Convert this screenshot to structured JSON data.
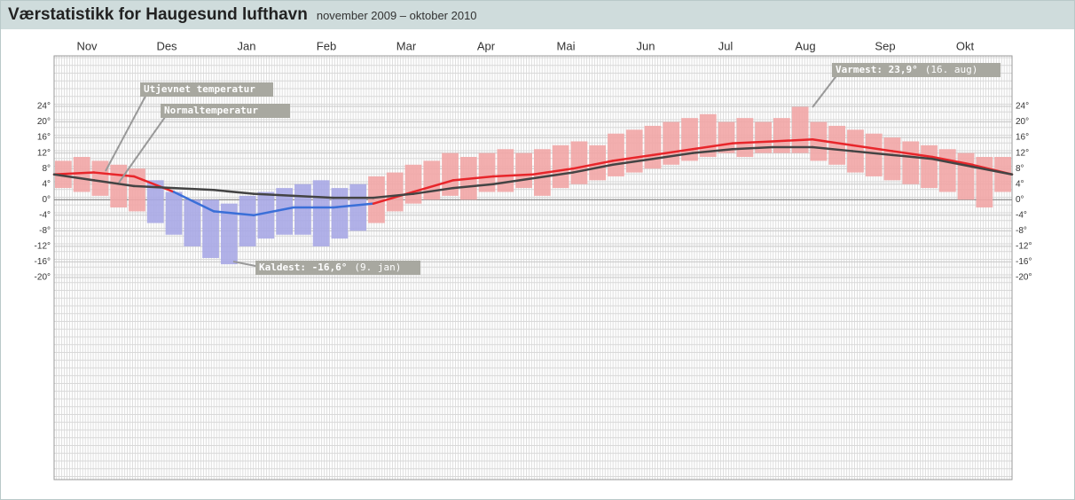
{
  "chart_data": {
    "type": "range_bar",
    "title": "Værstatistikk for Haugesund lufthavn",
    "subtitle": "november 2009 – oktober 2010",
    "categories": [
      "Nov",
      "Des",
      "Jan",
      "Feb",
      "Mar",
      "Apr",
      "Mai",
      "Jun",
      "Jul",
      "Aug",
      "Sep",
      "Okt"
    ],
    "ylim": [
      -72,
      37
    ],
    "yticks": [
      {
        "value": 24,
        "label": "24°"
      },
      {
        "value": 20,
        "label": "20°"
      },
      {
        "value": 16,
        "label": "16°"
      },
      {
        "value": 12,
        "label": "12°"
      },
      {
        "value": 8,
        "label": "8°"
      },
      {
        "value": 4,
        "label": "4°"
      },
      {
        "value": 0,
        "label": "0°"
      },
      {
        "value": -4,
        "label": "-4°"
      },
      {
        "value": -8,
        "label": "-8°"
      },
      {
        "value": -12,
        "label": "-12°"
      },
      {
        "value": -16,
        "label": "-16°"
      },
      {
        "value": -20,
        "label": "-20°"
      }
    ],
    "warm_color": "#f2a6a6",
    "cold_color": "#a9a9e6",
    "high": [
      10,
      11,
      10,
      9,
      8,
      5,
      2,
      0,
      0,
      -1,
      1,
      2,
      3,
      4,
      5,
      3,
      4,
      6,
      7,
      9,
      10,
      12,
      11,
      12,
      13,
      12,
      13,
      14,
      15,
      14,
      17,
      18,
      19,
      20,
      21,
      22,
      20,
      21,
      20,
      21,
      23.9,
      20,
      19,
      18,
      17,
      16,
      15,
      14,
      13,
      12,
      11,
      11
    ],
    "low": [
      3,
      2,
      1,
      -2,
      -3,
      -6,
      -9,
      -12,
      -15,
      -16.6,
      -12,
      -10,
      -9,
      -9,
      -12,
      -10,
      -8,
      -6,
      -3,
      -1,
      0,
      1,
      0,
      2,
      2,
      3,
      1,
      3,
      4,
      5,
      6,
      7,
      8,
      9,
      10,
      11,
      12,
      11,
      12,
      12,
      12,
      10,
      9,
      7,
      6,
      5,
      4,
      3,
      2,
      0,
      -2,
      2
    ],
    "lines": [
      {
        "name": "Utjevnet temperatur",
        "warm_color": "#e8262b",
        "cold_color": "#3a6fd8",
        "values": [
          6.5,
          7,
          6,
          2,
          -3,
          -4,
          -2,
          -2,
          -1,
          2,
          5,
          6,
          6.5,
          8,
          10,
          11.5,
          13,
          14.5,
          15,
          15.5,
          14,
          12.5,
          11,
          9,
          6.5
        ]
      },
      {
        "name": "Normaltemperatur",
        "color": "#444444",
        "values": [
          6.5,
          5,
          3.5,
          3,
          2.5,
          1.5,
          1,
          0.5,
          0.5,
          1.5,
          3,
          4,
          5.5,
          7,
          9,
          10.5,
          12,
          13,
          13.5,
          13.5,
          12.5,
          11.5,
          10.5,
          8.5,
          6.5
        ]
      }
    ],
    "annotations": {
      "warmest": {
        "label": "Varmest: 23,9°",
        "date": "(16. aug)"
      },
      "coldest": {
        "label": "Kaldest: -16,6°",
        "date": "(9. jan)"
      }
    }
  }
}
